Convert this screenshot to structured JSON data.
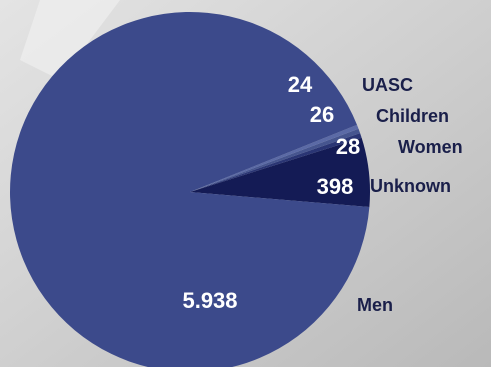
{
  "chart_data": {
    "type": "pie",
    "categories": [
      "UASC",
      "Children",
      "Women",
      "Unknown",
      "Men"
    ],
    "values": [
      24,
      26,
      28,
      398,
      5938
    ],
    "value_labels": [
      "24",
      "26",
      "28",
      "398",
      "5.938"
    ],
    "colors": [
      "#5b6aa6",
      "#46558f",
      "#2a3574",
      "#141b55",
      "#3c4a8b"
    ]
  }
}
